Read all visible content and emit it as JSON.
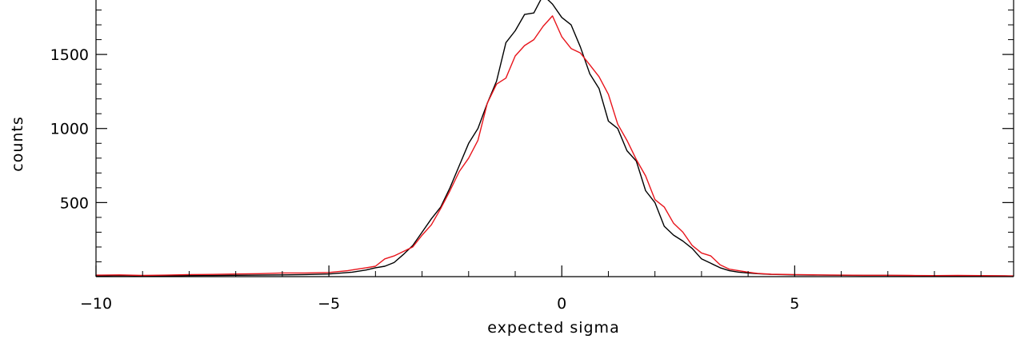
{
  "chart_data": {
    "type": "line",
    "title": "",
    "xlabel": "expected sigma",
    "ylabel": "counts",
    "xlim": [
      -10,
      9.7
    ],
    "ylim": [
      0,
      1900
    ],
    "x_ticks": [
      -10,
      -5,
      0,
      5
    ],
    "x_tick_labels": [
      "−10",
      "−5",
      "0",
      "5"
    ],
    "y_ticks": [
      500,
      1000,
      1500
    ],
    "y_tick_labels": [
      "500",
      "1000",
      "1500"
    ],
    "grid": false,
    "legend": "none",
    "series": [
      {
        "color": "#000000",
        "x": [
          -10,
          -9.5,
          -9,
          -8.5,
          -8,
          -7.5,
          -7,
          -6.5,
          -6,
          -5.5,
          -5,
          -4.5,
          -4.2,
          -4,
          -3.8,
          -3.6,
          -3.4,
          -3.2,
          -3.0,
          -2.8,
          -2.6,
          -2.4,
          -2.2,
          -2.0,
          -1.8,
          -1.6,
          -1.4,
          -1.2,
          -1.0,
          -0.8,
          -0.6,
          -0.4,
          -0.2,
          0.0,
          0.2,
          0.4,
          0.6,
          0.8,
          1.0,
          1.2,
          1.4,
          1.6,
          1.8,
          2.0,
          2.2,
          2.4,
          2.6,
          2.8,
          3.0,
          3.2,
          3.4,
          3.6,
          3.8,
          4.0,
          4.2,
          4.5,
          5.0,
          5.5,
          6.0,
          6.5,
          7.0,
          7.5,
          8.0,
          8.5,
          9.0,
          9.5,
          9.7
        ],
        "y": [
          5,
          8,
          6,
          5,
          7,
          8,
          9,
          10,
          12,
          14,
          18,
          30,
          45,
          60,
          70,
          95,
          150,
          210,
          300,
          390,
          470,
          600,
          750,
          900,
          1000,
          1170,
          1320,
          1580,
          1660,
          1770,
          1780,
          1900,
          1840,
          1750,
          1700,
          1550,
          1370,
          1270,
          1050,
          1000,
          850,
          780,
          580,
          500,
          340,
          280,
          240,
          190,
          120,
          90,
          60,
          40,
          30,
          25,
          20,
          15,
          12,
          10,
          9,
          8,
          8,
          7,
          6,
          5,
          6,
          5,
          4
        ]
      },
      {
        "color": "#e8141b",
        "x": [
          -10,
          -9.5,
          -9,
          -8.5,
          -8,
          -7.5,
          -7,
          -6.5,
          -6,
          -5.5,
          -5,
          -4.6,
          -4.4,
          -4.2,
          -4.0,
          -3.8,
          -3.6,
          -3.4,
          -3.2,
          -3.0,
          -2.8,
          -2.6,
          -2.4,
          -2.2,
          -2.0,
          -1.8,
          -1.6,
          -1.4,
          -1.2,
          -1.0,
          -0.8,
          -0.6,
          -0.4,
          -0.2,
          0.0,
          0.2,
          0.4,
          0.6,
          0.8,
          1.0,
          1.2,
          1.4,
          1.6,
          1.8,
          2.0,
          2.2,
          2.4,
          2.6,
          2.8,
          3.0,
          3.2,
          3.4,
          3.6,
          3.8,
          4.0,
          4.2,
          4.5,
          5.0,
          5.5,
          6.0,
          6.5,
          7.0,
          7.5,
          8.0,
          8.5,
          9.0,
          9.5,
          9.7
        ],
        "y": [
          10,
          12,
          8,
          10,
          14,
          15,
          18,
          20,
          25,
          25,
          28,
          40,
          50,
          60,
          70,
          120,
          140,
          170,
          200,
          280,
          350,
          460,
          580,
          710,
          800,
          920,
          1170,
          1300,
          1340,
          1490,
          1560,
          1600,
          1690,
          1760,
          1620,
          1540,
          1510,
          1430,
          1350,
          1230,
          1030,
          920,
          790,
          680,
          520,
          470,
          360,
          300,
          210,
          160,
          140,
          80,
          50,
          40,
          30,
          22,
          16,
          14,
          12,
          10,
          9,
          9,
          8,
          7,
          8,
          7,
          6,
          5
        ]
      }
    ]
  }
}
